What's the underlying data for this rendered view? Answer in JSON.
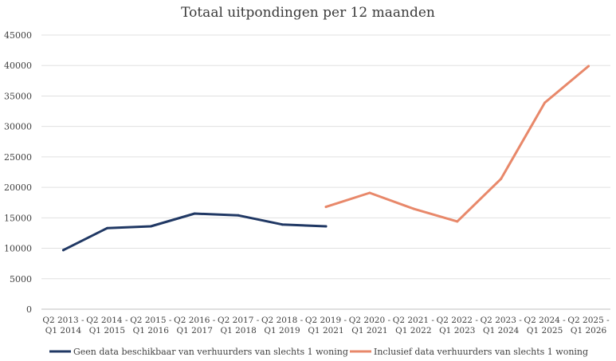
{
  "chart_data": {
    "type": "line",
    "title": "Totaal uitpondingen per 12 maanden",
    "xlabel": "",
    "ylabel": "",
    "categories": [
      [
        "Q2 2013 -",
        "Q1 2014"
      ],
      [
        "Q2 2014 -",
        "Q1 2015"
      ],
      [
        "Q2 2015 -",
        "Q1 2016"
      ],
      [
        "Q2 2016 -",
        "Q1 2017"
      ],
      [
        "Q2 2017 -",
        "Q1 2018"
      ],
      [
        "Q2 2018 -",
        "Q1 2019"
      ],
      [
        "Q2 2019 -",
        "Q1 2021"
      ],
      [
        "Q2 2020 -",
        "Q1 2021"
      ],
      [
        "Q2 2021 -",
        "Q1 2022"
      ],
      [
        "Q2 2022 -",
        "Q1 2023"
      ],
      [
        "Q2 2023 -",
        "Q1 2024"
      ],
      [
        "Q2 2024 -",
        "Q1 2025"
      ],
      [
        "Q2 2025 -",
        "Q1 2026"
      ]
    ],
    "ylim": [
      0,
      45000
    ],
    "yticks": [
      0,
      5000,
      10000,
      15000,
      20000,
      25000,
      30000,
      35000,
      40000,
      45000
    ],
    "grid": true,
    "legend_position": "bottom",
    "series": [
      {
        "name": "Geen data beschikbaar van verhuurders van slechts 1 woning",
        "color": "#203864",
        "values": [
          9700,
          13300,
          13600,
          15700,
          15400,
          13900,
          13600,
          null,
          null,
          null,
          null,
          null,
          null
        ]
      },
      {
        "name": "Inclusief data verhuurders van slechts 1 woning",
        "color": "#E8886A",
        "values": [
          null,
          null,
          null,
          null,
          null,
          null,
          16800,
          19100,
          16500,
          14400,
          21400,
          33900,
          39900
        ]
      }
    ]
  }
}
